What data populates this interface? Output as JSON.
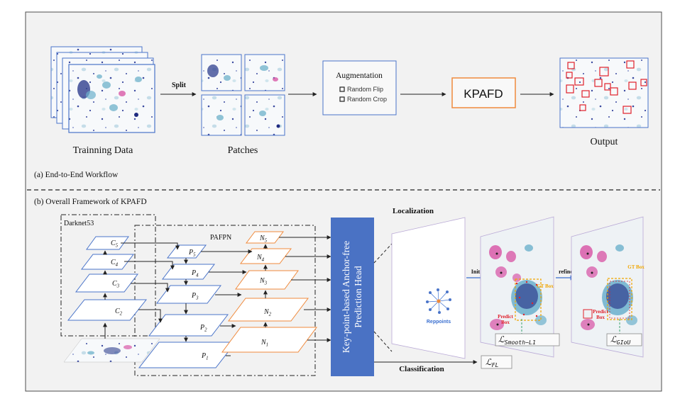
{
  "workflow": {
    "caption": "(a) End-to-End Workflow",
    "training_label": "Trainning Data",
    "split_label": "Split",
    "patches_label": "Patches",
    "augmentation": {
      "title": "Augmentation",
      "items": [
        "Random Flip",
        "Random Crop"
      ]
    },
    "model_label": "KPAFD",
    "output_label": "Output"
  },
  "framework": {
    "caption": "(b) Overall Framework of KPAFD",
    "backbone_label": "Darknet53",
    "neck_label": "PAFPN",
    "backbone_levels": [
      {
        "base": "C",
        "sub": "5"
      },
      {
        "base": "C",
        "sub": "4"
      },
      {
        "base": "C",
        "sub": "3"
      },
      {
        "base": "C",
        "sub": "2"
      }
    ],
    "p_levels": [
      {
        "base": "P",
        "sub": "5"
      },
      {
        "base": "P",
        "sub": "4"
      },
      {
        "base": "P",
        "sub": "3"
      },
      {
        "base": "P",
        "sub": "2"
      },
      {
        "base": "P",
        "sub": "1"
      }
    ],
    "n_levels": [
      {
        "base": "N",
        "sub": "5"
      },
      {
        "base": "N",
        "sub": "4"
      },
      {
        "base": "N",
        "sub": "3"
      },
      {
        "base": "N",
        "sub": "2"
      },
      {
        "base": "N",
        "sub": "1"
      }
    ],
    "head_line1": "Key-point-based Anchor-free",
    "head_line2": "Prediction Head",
    "localization_label": "Localization",
    "classification_label": "Classification",
    "reppoints_label": "Reppoints",
    "init_label": "Init",
    "refine_label": "refine",
    "gt_box_label": "GT Box",
    "predict_box_line1": "Predict",
    "predict_box_line2": "Box",
    "loss_smooth": {
      "base": "ℒ",
      "sub": "Smooth−L1"
    },
    "loss_giou": {
      "base": "ℒ",
      "sub": "GIoU"
    },
    "loss_fl": {
      "base": "ℒ",
      "sub": "FL"
    }
  },
  "colors": {
    "frame": "#4d4d4d",
    "panel_bg": "#f2f2f2",
    "blue_layer": "#4a74c9",
    "orange_layer": "#f08a3c",
    "head_fill": "#4a72c4",
    "gt_box": "#f0a500",
    "predict_box": "#e0202a",
    "stain_purple": "#2f3f8f",
    "stain_pink": "#d85aa8",
    "stain_cyan": "#6bb0cc"
  }
}
